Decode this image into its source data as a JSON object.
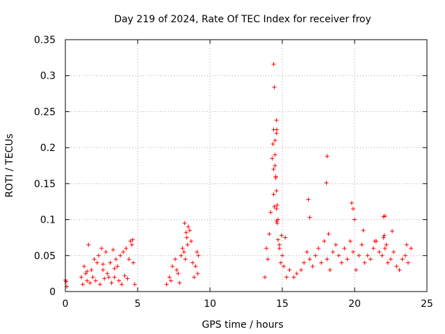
{
  "chart_data": {
    "type": "scatter",
    "title": "Day 219 of 2024, Rate Of TEC Index for receiver froy",
    "xlabel": "GPS time / hours",
    "ylabel": "ROTI / TECUs",
    "xlim": [
      0,
      25
    ],
    "ylim": [
      0,
      0.35
    ],
    "xticks": [
      0,
      5,
      10,
      15,
      20,
      25
    ],
    "xtick_labels": [
      "0",
      "5",
      "10",
      "15",
      "20",
      "25"
    ],
    "yticks": [
      0,
      0.05,
      0.1,
      0.15,
      0.2,
      0.25,
      0.3,
      0.35
    ],
    "ytick_labels": [
      "0",
      "0.05",
      "0.1",
      "0.15",
      "0.2",
      "0.25",
      "0.3",
      "0.35"
    ],
    "grid": true,
    "marker": "+",
    "color": "#ff0000",
    "series": [
      {
        "name": "ROTI",
        "x": [
          0.0,
          0.05,
          0.1,
          1.1,
          1.3,
          1.5,
          1.6,
          1.8,
          2.0,
          2.2,
          2.3,
          2.5,
          2.6,
          2.8,
          3.0,
          3.1,
          3.3,
          3.5,
          3.6,
          3.8,
          4.0,
          4.2,
          4.4,
          4.5,
          4.6,
          4.7,
          1.2,
          1.4,
          1.7,
          1.9,
          2.1,
          2.4,
          2.7,
          2.9,
          3.2,
          3.4,
          3.7,
          3.9,
          4.1,
          4.3,
          4.8,
          1.5,
          2.6,
          3.4,
          4.65,
          7.0,
          7.2,
          7.4,
          7.6,
          7.8,
          8.0,
          8.1,
          8.2,
          8.3,
          8.4,
          8.5,
          8.6,
          8.7,
          8.8,
          9.0,
          9.1,
          9.2,
          7.3,
          7.7,
          7.9,
          8.25,
          8.35,
          8.45,
          8.9,
          9.15,
          13.8,
          13.9,
          14.0,
          14.1,
          14.2,
          14.3,
          14.35,
          14.4,
          14.5,
          14.55,
          14.6,
          14.65,
          14.7,
          14.8,
          14.9,
          15.0,
          15.1,
          15.2,
          15.3,
          14.4,
          14.45,
          14.6,
          14.62,
          14.5,
          14.55,
          14.4,
          14.45,
          14.6,
          14.65,
          14.5,
          14.4,
          14.6,
          14.7,
          14.6,
          14.8,
          14.95,
          15.5,
          15.8,
          16.0,
          16.3,
          16.5,
          16.7,
          16.9,
          17.1,
          17.3,
          17.5,
          17.7,
          17.9,
          18.1,
          18.3,
          18.5,
          18.7,
          18.9,
          19.1,
          19.3,
          19.5,
          19.7,
          19.9,
          16.8,
          16.9,
          18.1,
          18.05,
          18.2,
          19.8,
          19.9,
          20.0,
          20.1,
          20.3,
          20.5,
          20.7,
          20.9,
          21.1,
          21.3,
          21.5,
          21.7,
          21.9,
          22.0,
          22.1,
          22.2,
          22.3,
          22.5,
          22.7,
          22.9,
          23.1,
          23.3,
          23.5,
          23.7,
          23.9,
          22.0,
          22.1,
          22.05,
          22.6,
          20.6,
          21.4,
          23.6
        ],
        "y": [
          0.016,
          0.014,
          0.007,
          0.02,
          0.035,
          0.015,
          0.065,
          0.03,
          0.045,
          0.04,
          0.05,
          0.06,
          0.03,
          0.055,
          0.02,
          0.04,
          0.058,
          0.045,
          0.035,
          0.05,
          0.055,
          0.06,
          0.045,
          0.07,
          0.065,
          0.04,
          0.01,
          0.025,
          0.012,
          0.02,
          0.015,
          0.01,
          0.018,
          0.025,
          0.012,
          0.02,
          0.015,
          0.01,
          0.022,
          0.018,
          0.01,
          0.028,
          0.038,
          0.032,
          0.072,
          0.01,
          0.02,
          0.035,
          0.045,
          0.025,
          0.05,
          0.06,
          0.055,
          0.045,
          0.075,
          0.09,
          0.085,
          0.07,
          0.04,
          0.035,
          0.055,
          0.05,
          0.015,
          0.03,
          0.012,
          0.095,
          0.082,
          0.065,
          0.02,
          0.025,
          0.02,
          0.06,
          0.045,
          0.08,
          0.11,
          0.185,
          0.205,
          0.225,
          0.21,
          0.16,
          0.14,
          0.12,
          0.1,
          0.06,
          0.04,
          0.05,
          0.035,
          0.075,
          0.02,
          0.316,
          0.284,
          0.238,
          0.225,
          0.19,
          0.158,
          0.135,
          0.118,
          0.098,
          0.095,
          0.175,
          0.17,
          0.22,
          0.072,
          0.115,
          0.065,
          0.078,
          0.03,
          0.02,
          0.025,
          0.03,
          0.04,
          0.055,
          0.045,
          0.035,
          0.05,
          0.06,
          0.04,
          0.07,
          0.045,
          0.03,
          0.055,
          0.065,
          0.05,
          0.04,
          0.06,
          0.045,
          0.07,
          0.055,
          0.128,
          0.103,
          0.188,
          0.151,
          0.08,
          0.123,
          0.115,
          0.1,
          0.03,
          0.05,
          0.065,
          0.04,
          0.05,
          0.045,
          0.06,
          0.07,
          0.055,
          0.05,
          0.075,
          0.06,
          0.065,
          0.04,
          0.045,
          0.055,
          0.035,
          0.03,
          0.045,
          0.05,
          0.04,
          0.06,
          0.104,
          0.105,
          0.078,
          0.084,
          0.085,
          0.07,
          0.065
        ]
      }
    ]
  }
}
